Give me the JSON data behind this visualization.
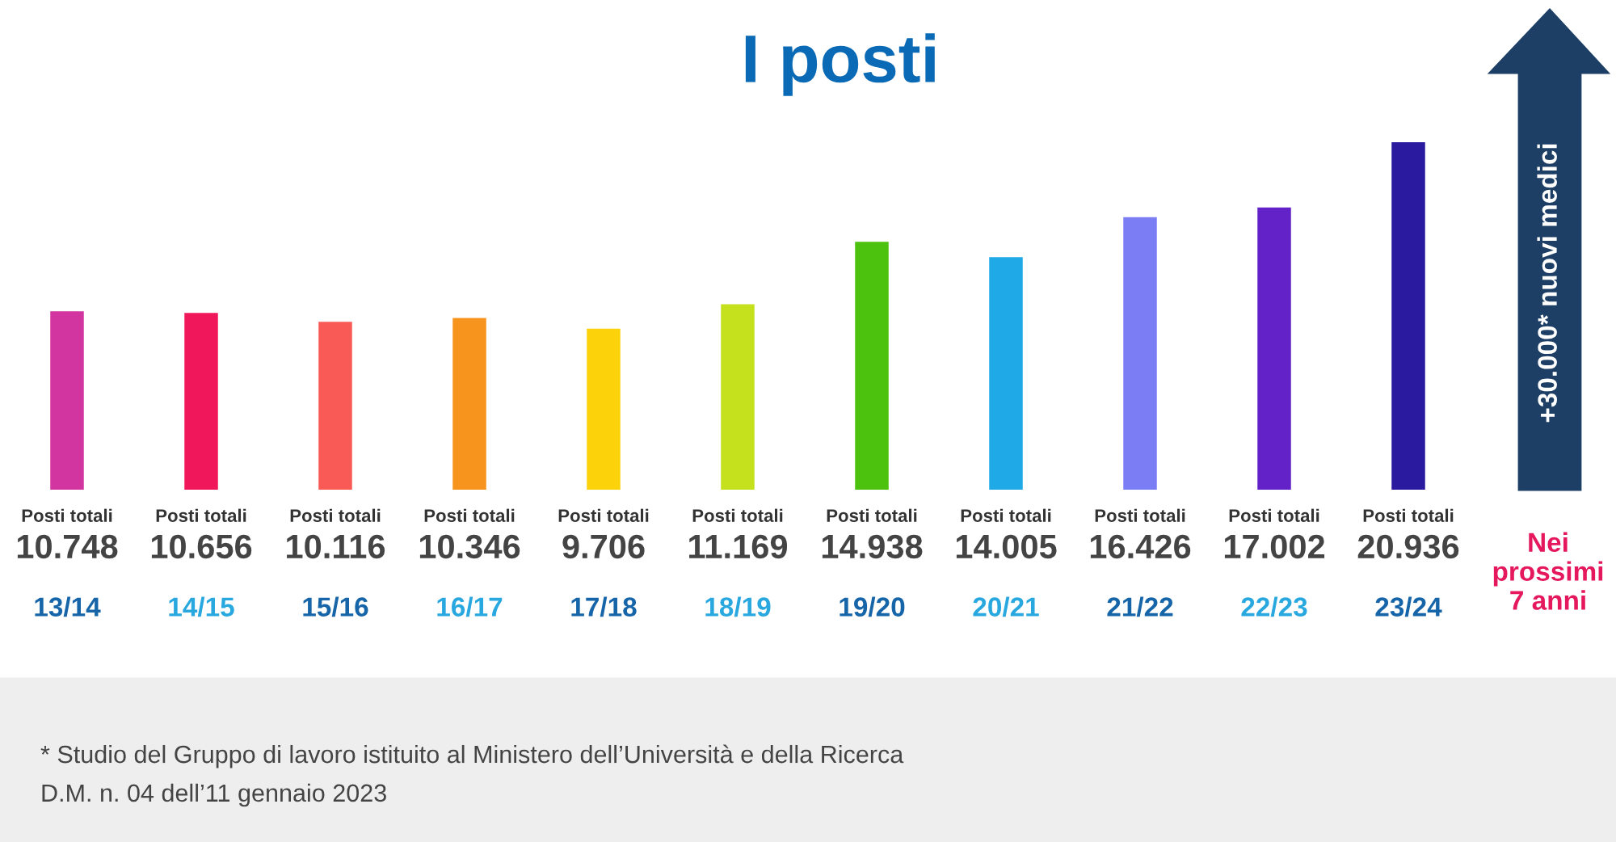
{
  "chart_data": {
    "type": "bar",
    "title": "I posti",
    "categories": [
      "13/14",
      "14/15",
      "15/16",
      "16/17",
      "17/18",
      "18/19",
      "19/20",
      "20/21",
      "21/22",
      "22/23",
      "23/24"
    ],
    "values": [
      10748,
      10656,
      10116,
      10346,
      9706,
      11169,
      14938,
      14005,
      16426,
      17002,
      20936
    ],
    "value_labels": [
      "10.748",
      "10.656",
      "10.116",
      "10.346",
      "9.706",
      "11.169",
      "14.938",
      "14.005",
      "16.426",
      "17.002",
      "20.936"
    ],
    "colors": [
      "#d2359f",
      "#f0185a",
      "#f95a55",
      "#f7941d",
      "#fcd20a",
      "#c5e01c",
      "#4cc20e",
      "#1fa9e6",
      "#7b7df5",
      "#6322c8",
      "#2a1aa0"
    ],
    "legend": false,
    "annotations": [
      "Posti totali",
      "Posti totali",
      "Posti totali",
      "Posti totali",
      "Posti totali",
      "Posti totali",
      "Posti totali",
      "Posti totali",
      "Posti totali",
      "Posti totali",
      "Posti totali",
      "+30.000* nuovi medici",
      "Nei\nprossimi\n7 anni",
      "* Studio del Gruppo di lavoro istituito al Ministero dell’Università e della Ricerca",
      "D.M. n. 04 dell’11 gennaio 2023"
    ]
  }
}
